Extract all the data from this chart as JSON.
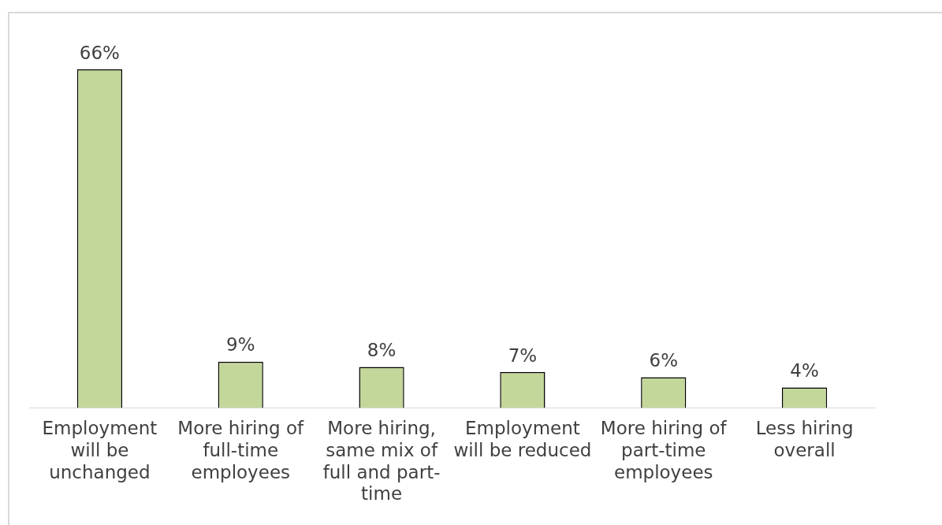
{
  "chart_data": {
    "type": "bar",
    "categories": [
      "Employment will be unchanged",
      "More hiring of full-time employees",
      "More hiring, same mix of full and part-time",
      "Employment will be reduced",
      "More hiring of part-time employees",
      "Less hiring overall"
    ],
    "values": [
      66,
      9,
      8,
      7,
      6,
      4
    ],
    "value_labels": [
      "66%",
      "9%",
      "8%",
      "7%",
      "6%",
      "4%"
    ],
    "color": "#c4d79b",
    "grid": false,
    "legend": false
  }
}
